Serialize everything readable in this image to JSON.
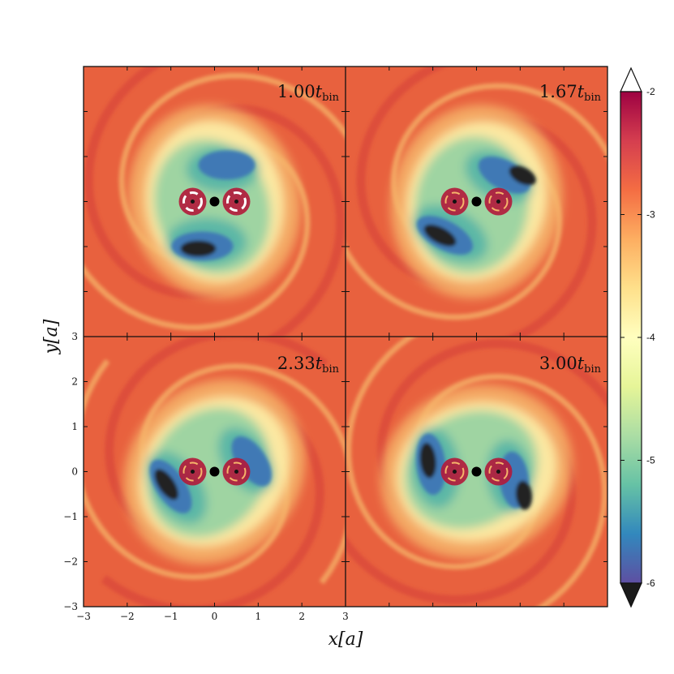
{
  "colors": {
    "background": "#e8613e",
    "ring": "#d9473a",
    "light": "#f6b46a",
    "pale": "#fdf0a8",
    "green": "#9fd4a2",
    "teal": "#5cb7a6",
    "blue": "#3f79b5",
    "dark": "#222222",
    "hot": "#b2183a",
    "white": "#ffffff"
  },
  "panels": [
    {
      "time_number": "1.00",
      "time_symbol": "t",
      "time_subscript": "bin"
    },
    {
      "time_number": "1.67",
      "time_symbol": "t",
      "time_subscript": "bin"
    },
    {
      "time_number": "2.33",
      "time_symbol": "t",
      "time_subscript": "bin"
    },
    {
      "time_number": "3.00",
      "time_symbol": "t",
      "time_subscript": "bin"
    }
  ],
  "axes": {
    "xlabel": "x[a]",
    "ylabel": "y[a]",
    "x_ticks": [
      "−3",
      "−2",
      "−1",
      "0",
      "1",
      "2",
      "3"
    ],
    "x_tick_values": [
      -3,
      -2,
      -1,
      0,
      1,
      2,
      3
    ],
    "y_ticks": [
      "3",
      "2",
      "1",
      "0",
      "−1",
      "−2",
      "−3"
    ],
    "y_tick_values": [
      3,
      2,
      1,
      0,
      -1,
      -2,
      -3
    ],
    "xlim": [
      -3,
      3
    ],
    "ylim": [
      -3,
      3
    ]
  },
  "colorbar": {
    "ticks": [
      "-2",
      "-3",
      "-4",
      "-5",
      "-6"
    ],
    "tick_values": [
      -2,
      -3,
      -4,
      -5,
      -6
    ],
    "range": [
      -6,
      -2
    ],
    "extend": "both",
    "stops": [
      "#5e4fa2",
      "#3288bd",
      "#66c2a5",
      "#abdda4",
      "#e6f598",
      "#ffffbf",
      "#fee08b",
      "#fdae61",
      "#f46d43",
      "#d53e4f",
      "#9e0142"
    ]
  }
}
